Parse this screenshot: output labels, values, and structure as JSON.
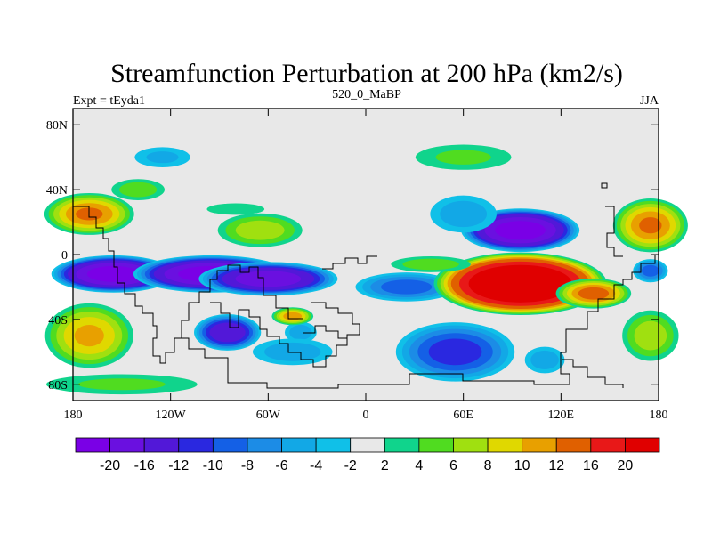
{
  "chart_data": {
    "type": "heatmap",
    "title": "Streamfunction Perturbation at 200 hPa (km2/s)",
    "subtitle_left": "Expt = tEyda1",
    "subtitle_center": "520_0_MaBP",
    "subtitle_right": "JJA",
    "x_ticks": [
      {
        "value": -180,
        "label": "180"
      },
      {
        "value": -120,
        "label": "120W"
      },
      {
        "value": -60,
        "label": "60W"
      },
      {
        "value": 0,
        "label": "0"
      },
      {
        "value": 60,
        "label": "60E"
      },
      {
        "value": 120,
        "label": "120E"
      },
      {
        "value": 180,
        "label": "180"
      }
    ],
    "y_ticks": [
      {
        "value": 80,
        "label": "80N"
      },
      {
        "value": 40,
        "label": "40N"
      },
      {
        "value": 0,
        "label": "0"
      },
      {
        "value": -40,
        "label": "40S"
      },
      {
        "value": -80,
        "label": "80S"
      }
    ],
    "xlim": [
      -180,
      180
    ],
    "ylim": [
      -90,
      90
    ],
    "colorbar": {
      "levels": [
        -20,
        -16,
        -12,
        -10,
        -8,
        -6,
        -4,
        -2,
        2,
        4,
        6,
        8,
        10,
        12,
        16,
        20
      ],
      "labels": [
        "-20",
        "-16",
        "-12",
        "-10",
        "-8",
        "-6",
        "-4",
        "-2",
        "2",
        "4",
        "6",
        "8",
        "10",
        "12",
        "16",
        "20"
      ],
      "colors": [
        "#7a00e6",
        "#6a10e0",
        "#5218d8",
        "#2a28e0",
        "#1460e6",
        "#1c8ce6",
        "#12a8e6",
        "#10c0e8",
        "#e8e8e8",
        "#10d48c",
        "#50dc20",
        "#a0e010",
        "#e0d800",
        "#e8a000",
        "#e06000",
        "#e81818",
        "#e00000"
      ]
    },
    "anomalies": [
      {
        "lon": -155,
        "lat": -12,
        "rlon": 40,
        "rlat": 12,
        "value": -24
      },
      {
        "lon": -95,
        "lat": -12,
        "rlon": 50,
        "rlat": 12,
        "value": -24
      },
      {
        "lon": -60,
        "lat": -15,
        "rlon": 45,
        "rlat": 11,
        "value": -20
      },
      {
        "lon": -85,
        "lat": -48,
        "rlon": 22,
        "rlat": 12,
        "value": -16
      },
      {
        "lon": -40,
        "lat": -48,
        "rlon": 12,
        "rlat": 8,
        "value": -6
      },
      {
        "lon": -45,
        "lat": -38,
        "rlon": 14,
        "rlat": 6,
        "value": 12
      },
      {
        "lon": -45,
        "lat": -60,
        "rlon": 30,
        "rlat": 10,
        "value": -6
      },
      {
        "lon": 25,
        "lat": -20,
        "rlon": 35,
        "rlat": 10,
        "value": -10
      },
      {
        "lon": 55,
        "lat": -60,
        "rlon": 40,
        "rlat": 20,
        "value": -12
      },
      {
        "lon": 110,
        "lat": -65,
        "rlon": 15,
        "rlat": 10,
        "value": -6
      },
      {
        "lon": 95,
        "lat": -18,
        "rlon": 55,
        "rlat": 20,
        "value": 30
      },
      {
        "lon": 140,
        "lat": -24,
        "rlon": 25,
        "rlat": 10,
        "value": 14
      },
      {
        "lon": 40,
        "lat": -6,
        "rlon": 30,
        "rlat": 6,
        "value": 6
      },
      {
        "lon": 95,
        "lat": 15,
        "rlon": 38,
        "rlat": 14,
        "value": -24
      },
      {
        "lon": 60,
        "lat": 25,
        "rlon": 25,
        "rlat": 14,
        "value": -6
      },
      {
        "lon": 60,
        "lat": 60,
        "rlon": 38,
        "rlat": 10,
        "value": 5
      },
      {
        "lon": -125,
        "lat": 60,
        "rlon": 22,
        "rlat": 8,
        "value": -5
      },
      {
        "lon": -170,
        "lat": 25,
        "rlon": 30,
        "rlat": 14,
        "value": 13
      },
      {
        "lon": -140,
        "lat": 40,
        "rlon": 20,
        "rlat": 8,
        "value": 6
      },
      {
        "lon": -65,
        "lat": 15,
        "rlon": 30,
        "rlat": 12,
        "value": 8
      },
      {
        "lon": -80,
        "lat": 28,
        "rlon": 25,
        "rlat": 5,
        "value": 4
      },
      {
        "lon": 175,
        "lat": 18,
        "rlon": 25,
        "rlat": 18,
        "value": 13
      },
      {
        "lon": -170,
        "lat": -50,
        "rlon": 30,
        "rlat": 22,
        "value": 11
      },
      {
        "lon": -150,
        "lat": -80,
        "rlon": 60,
        "rlat": 8,
        "value": 5
      },
      {
        "lon": 175,
        "lat": -50,
        "rlon": 20,
        "rlat": 18,
        "value": 8
      },
      {
        "lon": 175,
        "lat": -10,
        "rlon": 12,
        "rlat": 8,
        "value": -10
      }
    ]
  }
}
